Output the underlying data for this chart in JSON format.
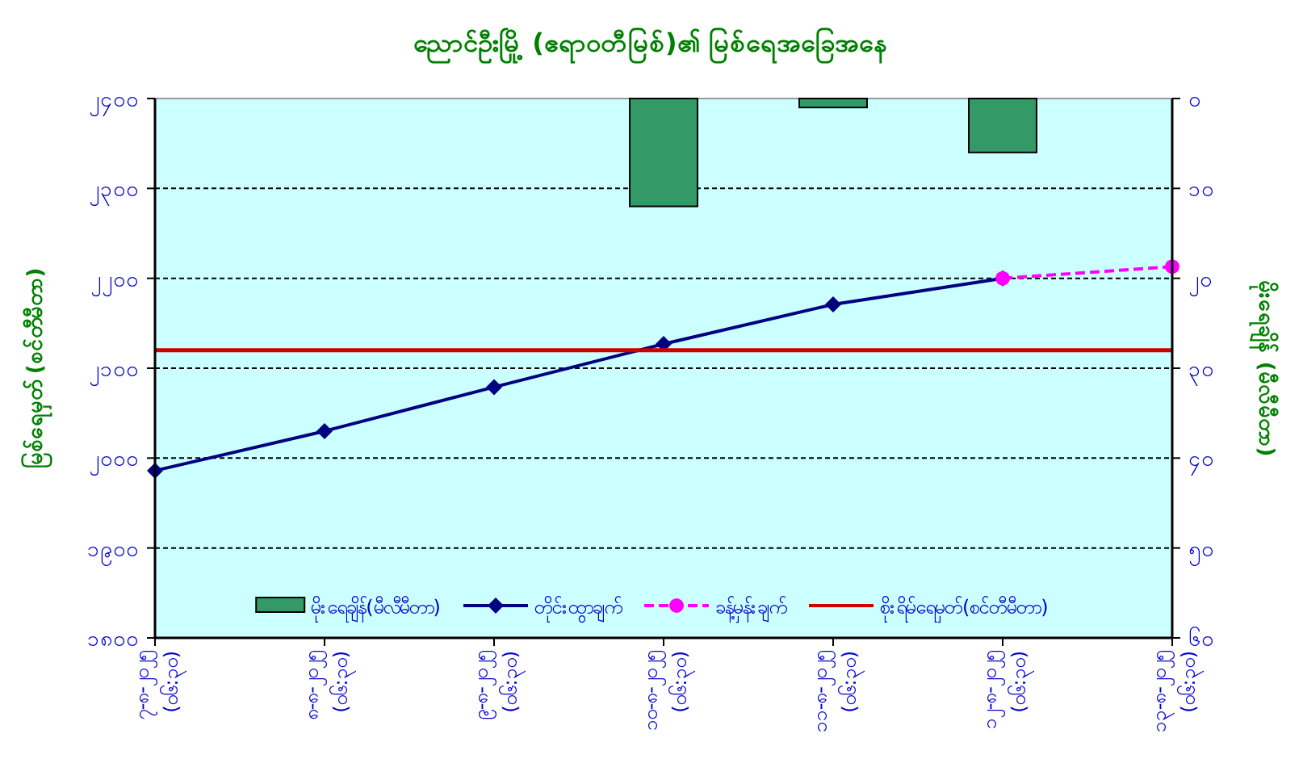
{
  "chart_data": {
    "type": "line",
    "title": "ညောင်ဦးမြို့ (ဧရာဝတီမြစ်)၏ မြစ်ရေအခြေအနေ",
    "ylabel": "မြစ်ရေမှတ် (စင်တီမီတာ)",
    "y2label": "မိုးရေချိန် (မီလီမီတာ)",
    "categories": [
      "၇-၈-၂၀၂၅ (၀၆:၃၀)",
      "၈-၈-၂၀၂၅ (၀၆:၃၀)",
      "၉-၈-၂၀၂၅ (၀၆:၃၀)",
      "၁၀-၈-၂၀၂၅ (၀၆:၃၀)",
      "၁၁-၈-၂၀၂၅ (၀၆:၃၀)",
      "၁၂-၈-၂၀၂၅ (၀၆:၃၀)",
      "၁၃-၈-၂၀၂၅ (၀၆:၃၀)"
    ],
    "ylim": [
      1800,
      2400
    ],
    "yticks": [
      {
        "value": 1800,
        "label": "၁၈၀၀"
      },
      {
        "value": 1900,
        "label": "၁၉၀၀"
      },
      {
        "value": 2000,
        "label": "၂၀၀၀"
      },
      {
        "value": 2100,
        "label": "၂၁၀၀"
      },
      {
        "value": 2200,
        "label": "၂၂၀၀"
      },
      {
        "value": 2300,
        "label": "၂၃၀၀"
      },
      {
        "value": 2400,
        "label": "၂၄၀၀"
      }
    ],
    "y2lim": [
      60,
      0
    ],
    "y2ticks": [
      {
        "value": 0,
        "label": "၀"
      },
      {
        "value": 10,
        "label": "၁၀"
      },
      {
        "value": 20,
        "label": "၂၀"
      },
      {
        "value": 30,
        "label": "၃၀"
      },
      {
        "value": 40,
        "label": "၄၀"
      },
      {
        "value": 50,
        "label": "၅၀"
      },
      {
        "value": 60,
        "label": "၆၀"
      }
    ],
    "series": [
      {
        "name": "မိုးရေချိန်(မီလီမီတာ)",
        "type": "bar",
        "axis": "y2",
        "color": "#339966",
        "values": [
          null,
          null,
          null,
          12,
          1,
          6,
          null
        ]
      },
      {
        "name": "တိုင်းထွာချက်",
        "color": "#000080",
        "marker": "diamond",
        "values": [
          1986,
          2030,
          2079,
          2127,
          2171,
          2200,
          null
        ]
      },
      {
        "name": "ခန့်မှန်းချက်",
        "color": "#ff00ff",
        "marker": "circle",
        "line_style": "dashed",
        "values": [
          null,
          null,
          null,
          null,
          null,
          2200,
          2213
        ]
      }
    ],
    "ref_lines": [
      {
        "axis": "y",
        "value": 2120,
        "label": "စိုးရိမ်ရေမှတ်(စင်တီမီတာ)",
        "color": "#cc0000"
      }
    ],
    "grid": "y",
    "legend": "bottom"
  }
}
